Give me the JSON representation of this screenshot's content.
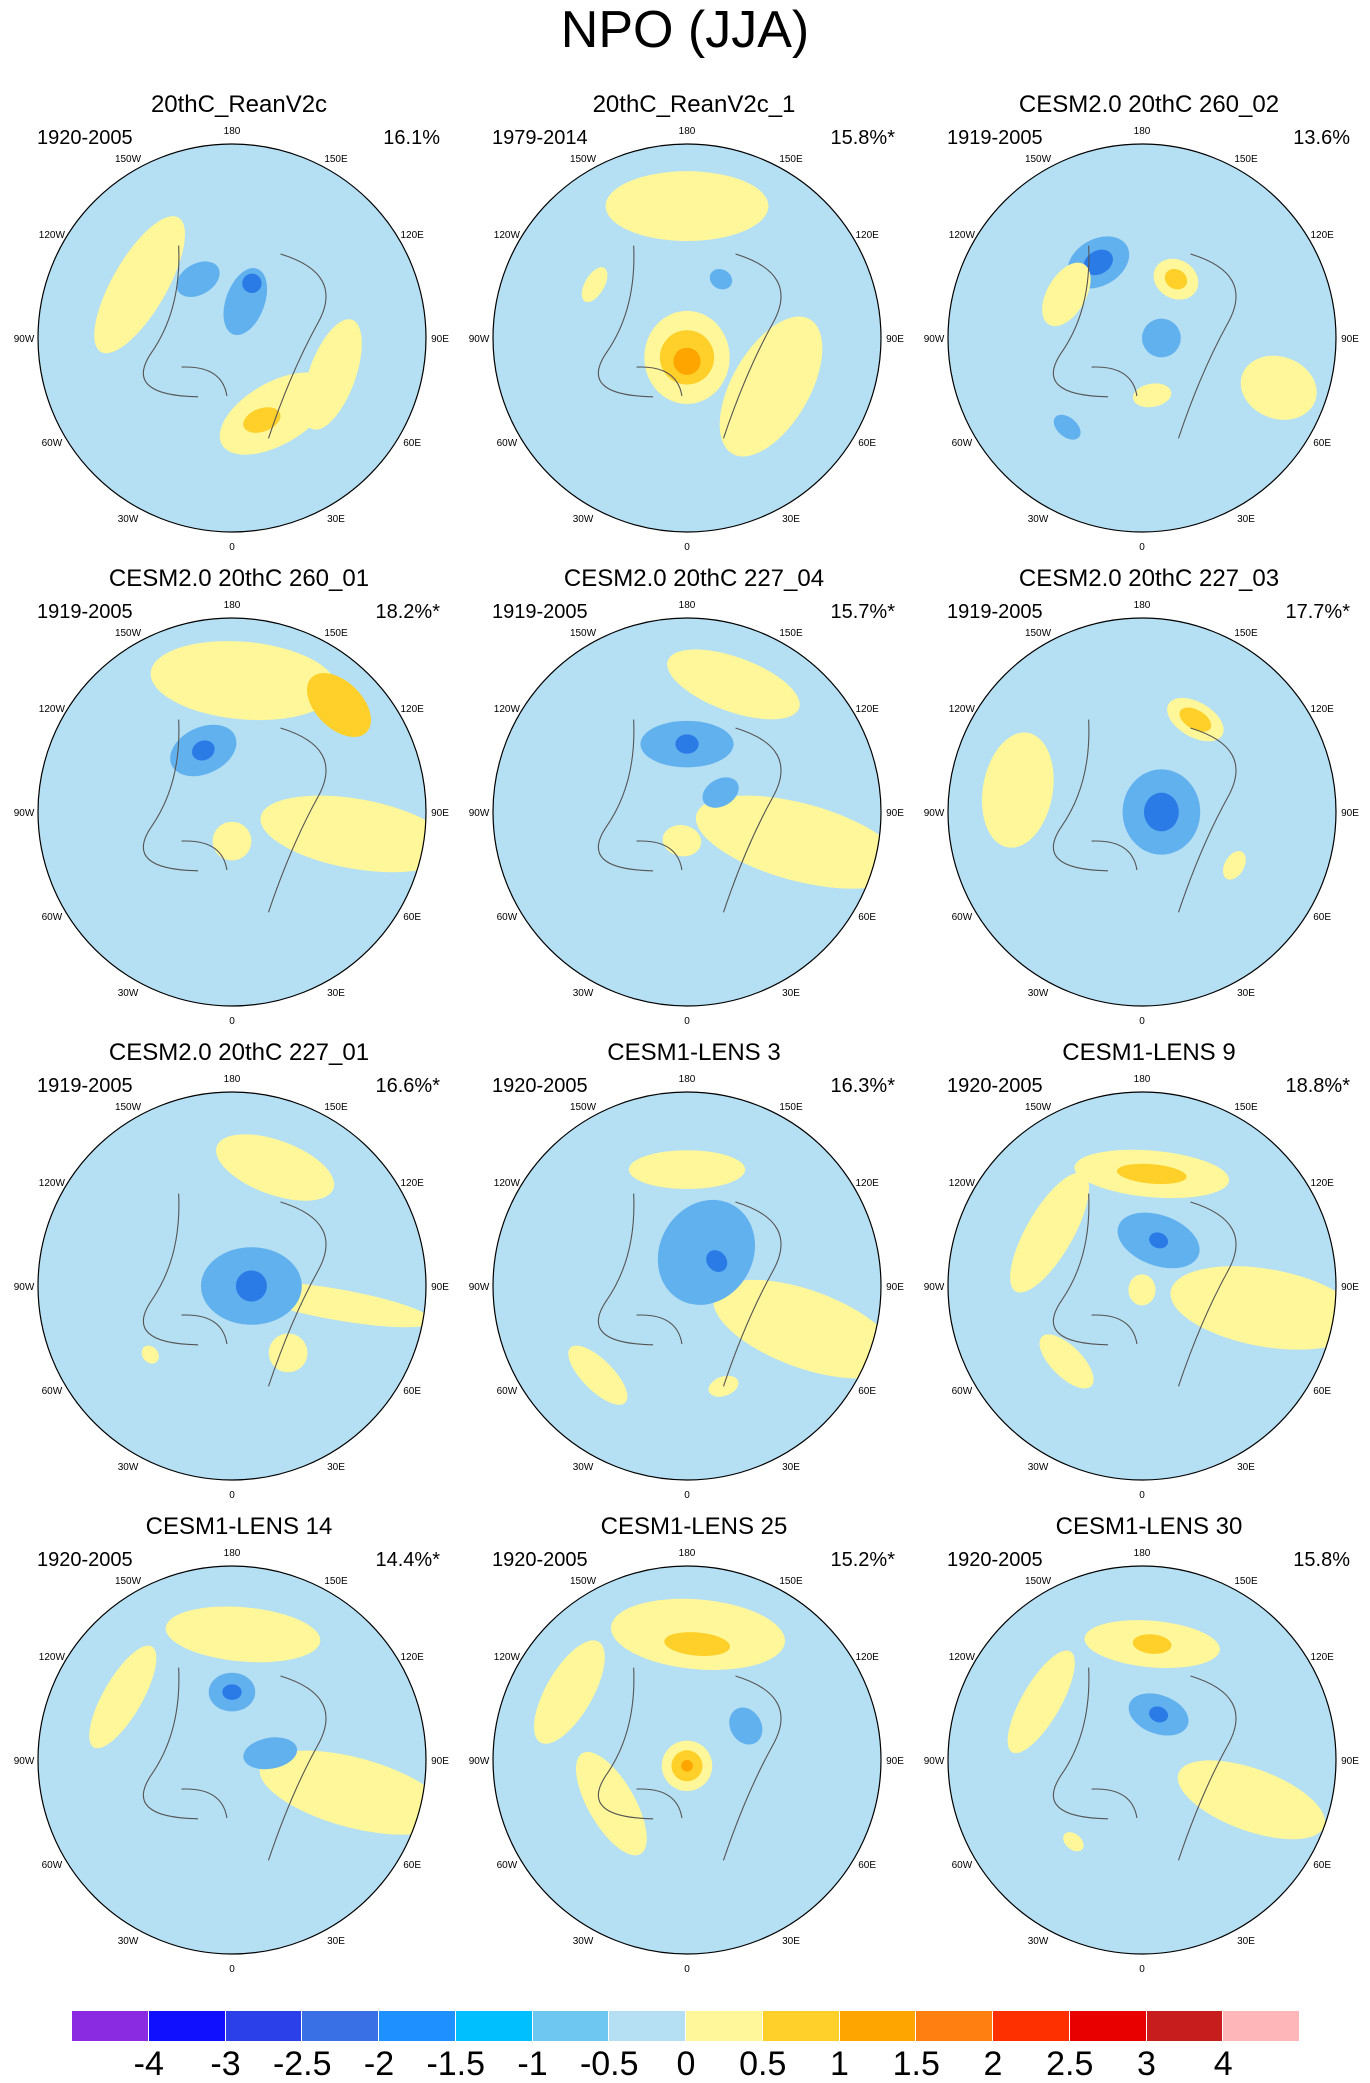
{
  "title": "NPO (JJA)",
  "lon_labels": [
    "180",
    "150E",
    "120E",
    "90E",
    "60E",
    "30E",
    "0",
    "30W",
    "60W",
    "90W",
    "120W",
    "150W"
  ],
  "panels": [
    {
      "title": "20thC_ReanV2c",
      "period": "1920-2005",
      "variance": "16.1%",
      "blobs": [
        {
          "lon": 30,
          "r": 0.45,
          "w": 0.32,
          "h": 0.16,
          "v": 1
        },
        {
          "lon": -120,
          "r": 0.55,
          "w": 0.4,
          "h": 0.14,
          "v": 1
        },
        {
          "lon": 70,
          "r": 0.55,
          "w": 0.3,
          "h": 0.12,
          "v": 1
        },
        {
          "lon": 20,
          "r": 0.45,
          "w": 0.1,
          "h": 0.06,
          "v": 2
        },
        {
          "lon": -150,
          "r": 0.35,
          "w": 0.12,
          "h": 0.08,
          "v": -2
        },
        {
          "lon": 160,
          "r": 0.2,
          "w": 0.1,
          "h": 0.18,
          "v": -2
        },
        {
          "lon": 160,
          "r": 0.3,
          "w": 0.05,
          "h": 0.05,
          "v": -3
        }
      ]
    },
    {
      "title": "20thC_ReanV2c_1",
      "period": "1979-2014",
      "variance": "15.8%*",
      "blobs": [
        {
          "lon": 180,
          "r": 0.68,
          "w": 0.42,
          "h": 0.18,
          "v": 1
        },
        {
          "lon": 60,
          "r": 0.5,
          "w": 0.4,
          "h": 0.2,
          "v": 1
        },
        {
          "lon": 0,
          "r": 0.1,
          "w": 0.22,
          "h": 0.24,
          "v": 1
        },
        {
          "lon": 0,
          "r": 0.1,
          "w": 0.14,
          "h": 0.14,
          "v": 2
        },
        {
          "lon": 0,
          "r": 0.12,
          "w": 0.07,
          "h": 0.07,
          "v": 3
        },
        {
          "lon": -120,
          "r": 0.55,
          "w": 0.1,
          "h": 0.05,
          "v": 1
        },
        {
          "lon": 150,
          "r": 0.35,
          "w": 0.06,
          "h": 0.05,
          "v": -2
        }
      ]
    },
    {
      "title": "CESM2.0 20thC 260_02",
      "period": "1919-2005",
      "variance": "13.6%",
      "blobs": [
        {
          "lon": 150,
          "r": 0.35,
          "w": 0.12,
          "h": 0.1,
          "v": 1
        },
        {
          "lon": 150,
          "r": 0.35,
          "w": 0.06,
          "h": 0.05,
          "v": 2
        },
        {
          "lon": -150,
          "r": 0.45,
          "w": 0.17,
          "h": 0.12,
          "v": -2
        },
        {
          "lon": -150,
          "r": 0.45,
          "w": 0.08,
          "h": 0.06,
          "v": -3
        },
        {
          "lon": 90,
          "r": 0.1,
          "w": 0.1,
          "h": 0.1,
          "v": -2
        },
        {
          "lon": -120,
          "r": 0.45,
          "w": 0.18,
          "h": 0.1,
          "v": 1
        },
        {
          "lon": 70,
          "r": 0.75,
          "w": 0.16,
          "h": 0.2,
          "v": 1
        },
        {
          "lon": -40,
          "r": 0.6,
          "w": 0.08,
          "h": 0.05,
          "v": -2
        },
        {
          "lon": 10,
          "r": 0.3,
          "w": 0.1,
          "h": 0.06,
          "v": 1
        }
      ]
    },
    {
      "title": "CESM2.0 20thC 260_01",
      "period": "1919-2005",
      "variance": "18.2%*",
      "blobs": [
        {
          "lon": 175,
          "r": 0.68,
          "w": 0.48,
          "h": 0.2,
          "v": 1
        },
        {
          "lon": 135,
          "r": 0.78,
          "w": 0.2,
          "h": 0.12,
          "v": 2
        },
        {
          "lon": 80,
          "r": 0.65,
          "w": 0.18,
          "h": 0.5,
          "v": 1
        },
        {
          "lon": -155,
          "r": 0.35,
          "w": 0.18,
          "h": 0.12,
          "v": -2
        },
        {
          "lon": -155,
          "r": 0.35,
          "w": 0.06,
          "h": 0.05,
          "v": -3
        },
        {
          "lon": 0,
          "r": 0.15,
          "w": 0.1,
          "h": 0.1,
          "v": 1
        }
      ]
    },
    {
      "title": "CESM2.0 20thC 227_04",
      "period": "1919-2005",
      "variance": "15.7%*",
      "blobs": [
        {
          "lon": 160,
          "r": 0.7,
          "w": 0.36,
          "h": 0.14,
          "v": 1
        },
        {
          "lon": 75,
          "r": 0.6,
          "w": 0.2,
          "h": 0.55,
          "v": 1
        },
        {
          "lon": 180,
          "r": 0.35,
          "w": 0.24,
          "h": 0.12,
          "v": -2
        },
        {
          "lon": 180,
          "r": 0.35,
          "w": 0.06,
          "h": 0.05,
          "v": -3
        },
        {
          "lon": 120,
          "r": 0.2,
          "w": 0.07,
          "h": 0.1,
          "v": -2
        },
        {
          "lon": -10,
          "r": 0.15,
          "w": 0.1,
          "h": 0.08,
          "v": 1
        }
      ]
    },
    {
      "title": "CESM2.0 20thC 227_03",
      "period": "1919-2005",
      "variance": "17.7%*",
      "blobs": [
        {
          "lon": 150,
          "r": 0.55,
          "w": 0.16,
          "h": 0.09,
          "v": 1
        },
        {
          "lon": 150,
          "r": 0.55,
          "w": 0.09,
          "h": 0.05,
          "v": 2
        },
        {
          "lon": 90,
          "r": 0.1,
          "w": 0.22,
          "h": 0.2,
          "v": -2
        },
        {
          "lon": 90,
          "r": 0.1,
          "w": 0.1,
          "h": 0.09,
          "v": -3
        },
        {
          "lon": -100,
          "r": 0.65,
          "w": 0.3,
          "h": 0.18,
          "v": 1
        },
        {
          "lon": 60,
          "r": 0.55,
          "w": 0.08,
          "h": 0.05,
          "v": 1
        }
      ]
    },
    {
      "title": "CESM2.0 20thC 227_01",
      "period": "1919-2005",
      "variance": "16.6%*",
      "blobs": [
        {
          "lon": 160,
          "r": 0.65,
          "w": 0.32,
          "h": 0.14,
          "v": 1
        },
        {
          "lon": 80,
          "r": 0.55,
          "w": 0.08,
          "h": 0.5,
          "v": 1
        },
        {
          "lon": 40,
          "r": 0.45,
          "w": 0.1,
          "h": 0.1,
          "v": 1
        },
        {
          "lon": 90,
          "r": 0.1,
          "w": 0.2,
          "h": 0.26,
          "v": -2
        },
        {
          "lon": 90,
          "r": 0.1,
          "w": 0.08,
          "h": 0.08,
          "v": -3
        },
        {
          "lon": -50,
          "r": 0.55,
          "w": 0.05,
          "h": 0.04,
          "v": 1
        }
      ]
    },
    {
      "title": "CESM1-LENS 3",
      "period": "1920-2005",
      "variance": "16.3%*",
      "blobs": [
        {
          "lon": 180,
          "r": 0.6,
          "w": 0.3,
          "h": 0.1,
          "v": 1
        },
        {
          "lon": 70,
          "r": 0.65,
          "w": 0.2,
          "h": 0.5,
          "v": 1
        },
        {
          "lon": -45,
          "r": 0.65,
          "w": 0.2,
          "h": 0.08,
          "v": 1
        },
        {
          "lon": 150,
          "r": 0.2,
          "w": 0.24,
          "h": 0.28,
          "v": -2
        },
        {
          "lon": 130,
          "r": 0.2,
          "w": 0.06,
          "h": 0.05,
          "v": -3
        },
        {
          "lon": 20,
          "r": 0.55,
          "w": 0.08,
          "h": 0.05,
          "v": 1
        }
      ]
    },
    {
      "title": "CESM1-LENS 9",
      "period": "1920-2005",
      "variance": "18.8%*",
      "blobs": [
        {
          "lon": 175,
          "r": 0.58,
          "w": 0.4,
          "h": 0.12,
          "v": 1
        },
        {
          "lon": 175,
          "r": 0.58,
          "w": 0.18,
          "h": 0.05,
          "v": 2
        },
        {
          "lon": -120,
          "r": 0.55,
          "w": 0.35,
          "h": 0.12,
          "v": 1
        },
        {
          "lon": 80,
          "r": 0.65,
          "w": 0.2,
          "h": 0.5,
          "v": 1
        },
        {
          "lon": -45,
          "r": 0.55,
          "w": 0.18,
          "h": 0.08,
          "v": 1
        },
        {
          "lon": 160,
          "r": 0.25,
          "w": 0.22,
          "h": 0.13,
          "v": -2
        },
        {
          "lon": 160,
          "r": 0.25,
          "w": 0.05,
          "h": 0.04,
          "v": -3
        },
        {
          "lon": 0,
          "r": 0.02,
          "w": 0.07,
          "h": 0.08,
          "v": 1
        }
      ]
    },
    {
      "title": "CESM1-LENS 14",
      "period": "1920-2005",
      "variance": "14.4%*",
      "blobs": [
        {
          "lon": 175,
          "r": 0.65,
          "w": 0.4,
          "h": 0.14,
          "v": 1
        },
        {
          "lon": -120,
          "r": 0.65,
          "w": 0.3,
          "h": 0.1,
          "v": 1
        },
        {
          "lon": 75,
          "r": 0.65,
          "w": 0.18,
          "h": 0.5,
          "v": 1
        },
        {
          "lon": 180,
          "r": 0.35,
          "w": 0.12,
          "h": 0.1,
          "v": -2
        },
        {
          "lon": 180,
          "r": 0.35,
          "w": 0.05,
          "h": 0.04,
          "v": -3
        },
        {
          "lon": 100,
          "r": 0.2,
          "w": 0.08,
          "h": 0.14,
          "v": -2
        }
      ]
    },
    {
      "title": "CESM1-LENS 25",
      "period": "1920-2005",
      "variance": "15.2%*",
      "blobs": [
        {
          "lon": 175,
          "r": 0.65,
          "w": 0.45,
          "h": 0.18,
          "v": 1
        },
        {
          "lon": 175,
          "r": 0.6,
          "w": 0.17,
          "h": 0.06,
          "v": 2
        },
        {
          "lon": -120,
          "r": 0.7,
          "w": 0.3,
          "h": 0.12,
          "v": 1
        },
        {
          "lon": 0,
          "r": 0.03,
          "w": 0.13,
          "h": 0.13,
          "v": 1
        },
        {
          "lon": 0,
          "r": 0.03,
          "w": 0.08,
          "h": 0.08,
          "v": 2
        },
        {
          "lon": 0,
          "r": 0.03,
          "w": 0.03,
          "h": 0.03,
          "v": 3
        },
        {
          "lon": -60,
          "r": 0.45,
          "w": 0.3,
          "h": 0.12,
          "v": 1
        },
        {
          "lon": 120,
          "r": 0.35,
          "w": 0.1,
          "h": 0.08,
          "v": -2
        }
      ]
    },
    {
      "title": "CESM1-LENS 30",
      "period": "1920-2005",
      "variance": "15.8%",
      "blobs": [
        {
          "lon": 175,
          "r": 0.6,
          "w": 0.35,
          "h": 0.12,
          "v": 1
        },
        {
          "lon": 175,
          "r": 0.6,
          "w": 0.1,
          "h": 0.05,
          "v": 2
        },
        {
          "lon": -120,
          "r": 0.6,
          "w": 0.3,
          "h": 0.1,
          "v": 1
        },
        {
          "lon": 70,
          "r": 0.6,
          "w": 0.16,
          "h": 0.4,
          "v": 1
        },
        {
          "lon": 160,
          "r": 0.25,
          "w": 0.16,
          "h": 0.1,
          "v": -2
        },
        {
          "lon": 160,
          "r": 0.25,
          "w": 0.05,
          "h": 0.04,
          "v": -3
        },
        {
          "lon": -40,
          "r": 0.55,
          "w": 0.06,
          "h": 0.04,
          "v": 1
        }
      ]
    }
  ],
  "colorbar": {
    "colors": [
      "#8a2be2",
      "#1010ff",
      "#2b40e8",
      "#3a70e6",
      "#1e90ff",
      "#00bfff",
      "#6ec7f0",
      "#b5dff2",
      "#fff799",
      "#ffd02a",
      "#ffa500",
      "#ff7f11",
      "#ff3000",
      "#e80000",
      "#c81d1d",
      "#ffb6b9"
    ],
    "labels": [
      "-4",
      "-3",
      "-2.5",
      "-2",
      "-1.5",
      "-1",
      "-0.5",
      "0",
      "0.5",
      "1",
      "1.5",
      "2",
      "2.5",
      "3",
      "4"
    ]
  },
  "palette": {
    "-3": "#2b7be6",
    "-2": "#62b1ef",
    "-1": "#b5dff2",
    "1": "#fff799",
    "2": "#ffd02a",
    "3": "#ffa500",
    "4": "#ff7f11",
    "5": "#ff3000"
  }
}
